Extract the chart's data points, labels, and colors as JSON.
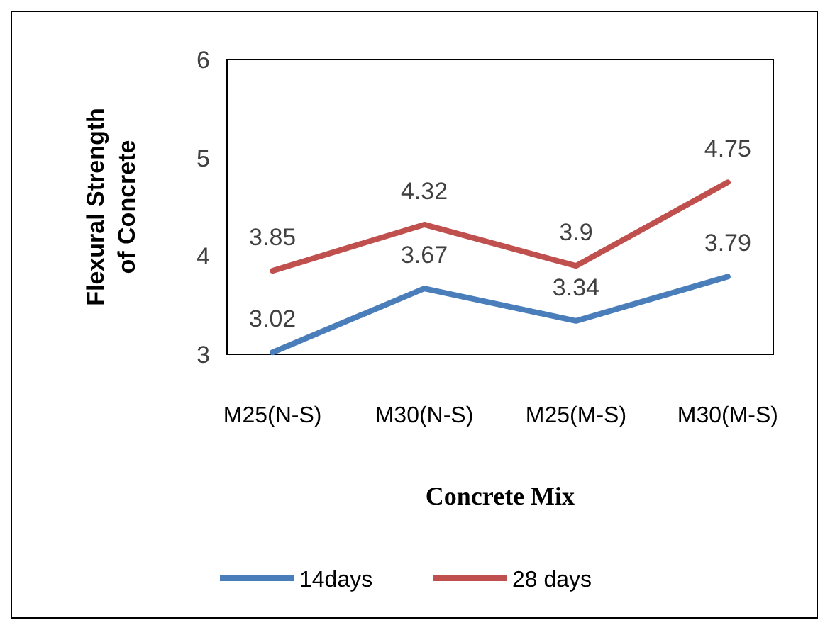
{
  "chart_data": {
    "type": "line",
    "xlabel": "Concrete Mix",
    "ylabel": "Flexural Strength of Concrete",
    "categories": [
      "M25(N-S)",
      "M30(N-S)",
      "M25(M-S)",
      "M30(M-S)"
    ],
    "series": [
      {
        "name": "14days",
        "color": "#4a7ebb",
        "values": [
          3.02,
          3.67,
          3.34,
          3.79
        ]
      },
      {
        "name": "28 days",
        "color": "#c0504d",
        "values": [
          3.85,
          4.32,
          3.9,
          4.75
        ]
      }
    ],
    "ylim": [
      3,
      6
    ],
    "yticks": [
      3,
      4,
      5,
      6
    ],
    "data_labels": true,
    "legend": "bottom",
    "grid": false,
    "marker": "none",
    "line_style": "solid"
  }
}
